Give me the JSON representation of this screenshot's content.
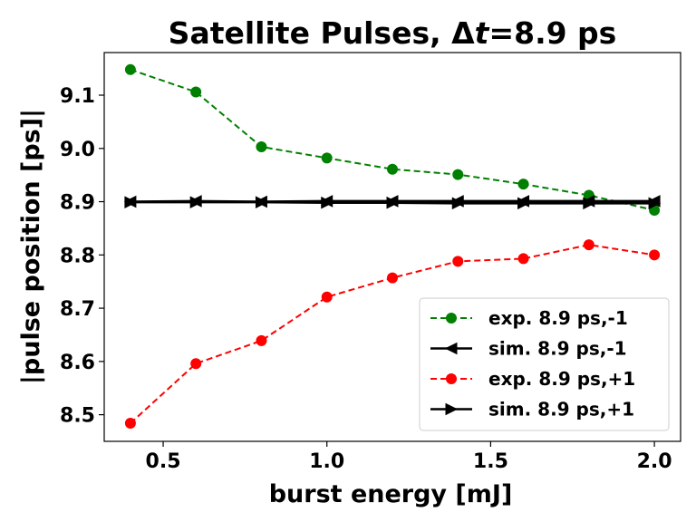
{
  "chart_data": {
    "type": "line",
    "title_prefix": "Satellite Pulses, Δ",
    "title_var": "t",
    "title_suffix": "=8.9 ps",
    "xlabel": "burst energy [mJ]",
    "ylabel": "|pulse position [ps]|",
    "xlim": [
      0.32,
      2.08
    ],
    "ylim": [
      8.45,
      9.18
    ],
    "xticks": [
      0.5,
      1.0,
      1.5,
      2.0
    ],
    "xtick_labels": [
      "0.5",
      "1.0",
      "1.5",
      "2.0"
    ],
    "yticks": [
      8.5,
      8.6,
      8.7,
      8.8,
      8.9,
      9.0,
      9.1
    ],
    "ytick_labels": [
      "8.5",
      "8.6",
      "8.7",
      "8.8",
      "8.9",
      "9.0",
      "9.1"
    ],
    "x": [
      0.4,
      0.6,
      0.8,
      1.0,
      1.2,
      1.4,
      1.6,
      1.8,
      2.0
    ],
    "legend_position": "lower-right",
    "series": [
      {
        "name": "exp. 8.9 ps,-1",
        "color": "#008000",
        "marker": "circle",
        "dashed": true,
        "values": [
          9.148,
          9.106,
          9.003,
          8.982,
          8.961,
          8.951,
          8.933,
          8.912,
          8.884
        ]
      },
      {
        "name": "sim. 8.9 ps,-1",
        "color": "#000000",
        "marker": "triangle-left",
        "dashed": false,
        "values": [
          8.9,
          8.901,
          8.9,
          8.901,
          8.901,
          8.901,
          8.901,
          8.901,
          8.901
        ]
      },
      {
        "name": "exp. 8.9 ps,+1",
        "color": "#ff0000",
        "marker": "circle",
        "dashed": true,
        "values": [
          8.484,
          8.596,
          8.639,
          8.721,
          8.757,
          8.788,
          8.793,
          8.819,
          8.8
        ]
      },
      {
        "name": "sim. 8.9 ps,+1",
        "color": "#000000",
        "marker": "triangle-right",
        "dashed": false,
        "values": [
          8.899,
          8.899,
          8.899,
          8.898,
          8.898,
          8.897,
          8.897,
          8.897,
          8.897
        ]
      }
    ]
  }
}
